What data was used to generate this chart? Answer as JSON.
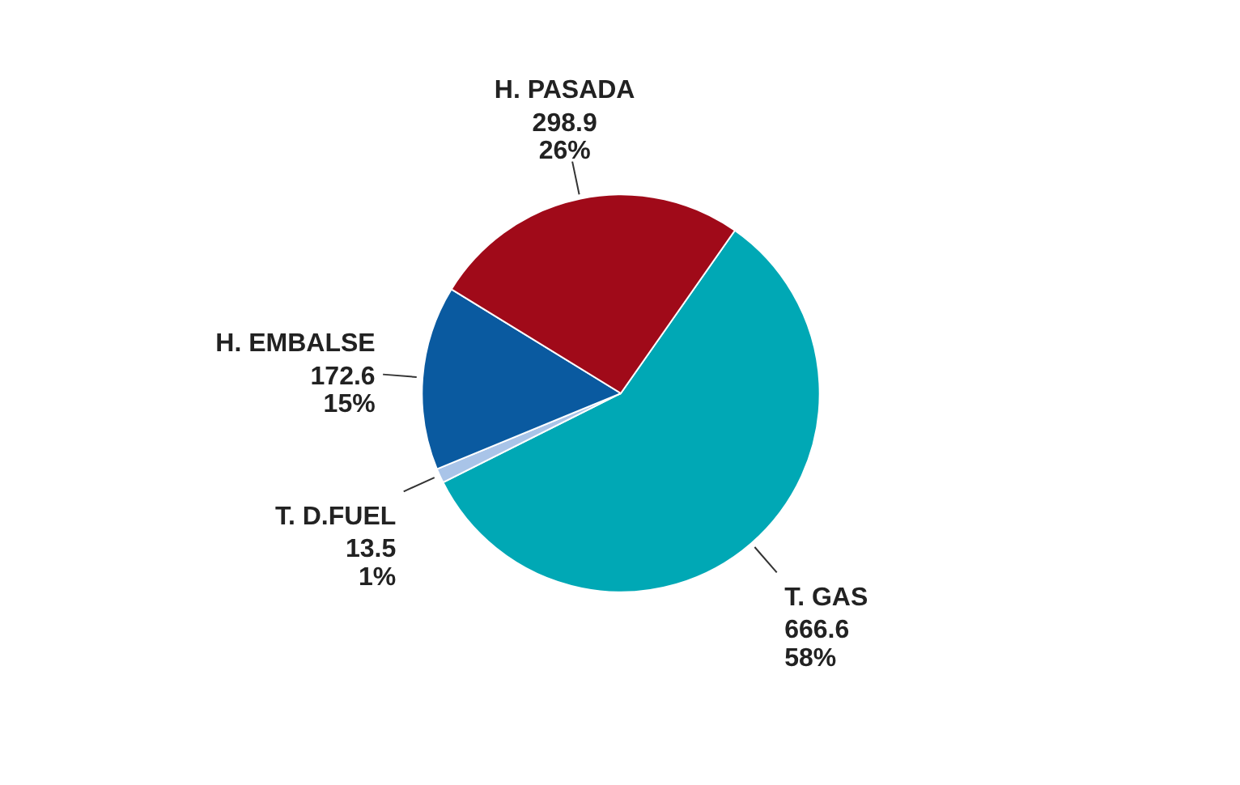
{
  "chart_data": {
    "type": "pie",
    "categories": [
      "T. GAS",
      "T. D.FUEL",
      "H. EMBALSE",
      "H. PASADA"
    ],
    "values": [
      666.6,
      13.5,
      172.6,
      298.9
    ],
    "colors": [
      "#00a8b5",
      "#a9c4e8",
      "#0a5aa0",
      "#a00a19"
    ],
    "value_labels": [
      "666.6\n58%",
      "13.5\n1%",
      "172.6\n15%",
      "298.9\n26%"
    ]
  }
}
